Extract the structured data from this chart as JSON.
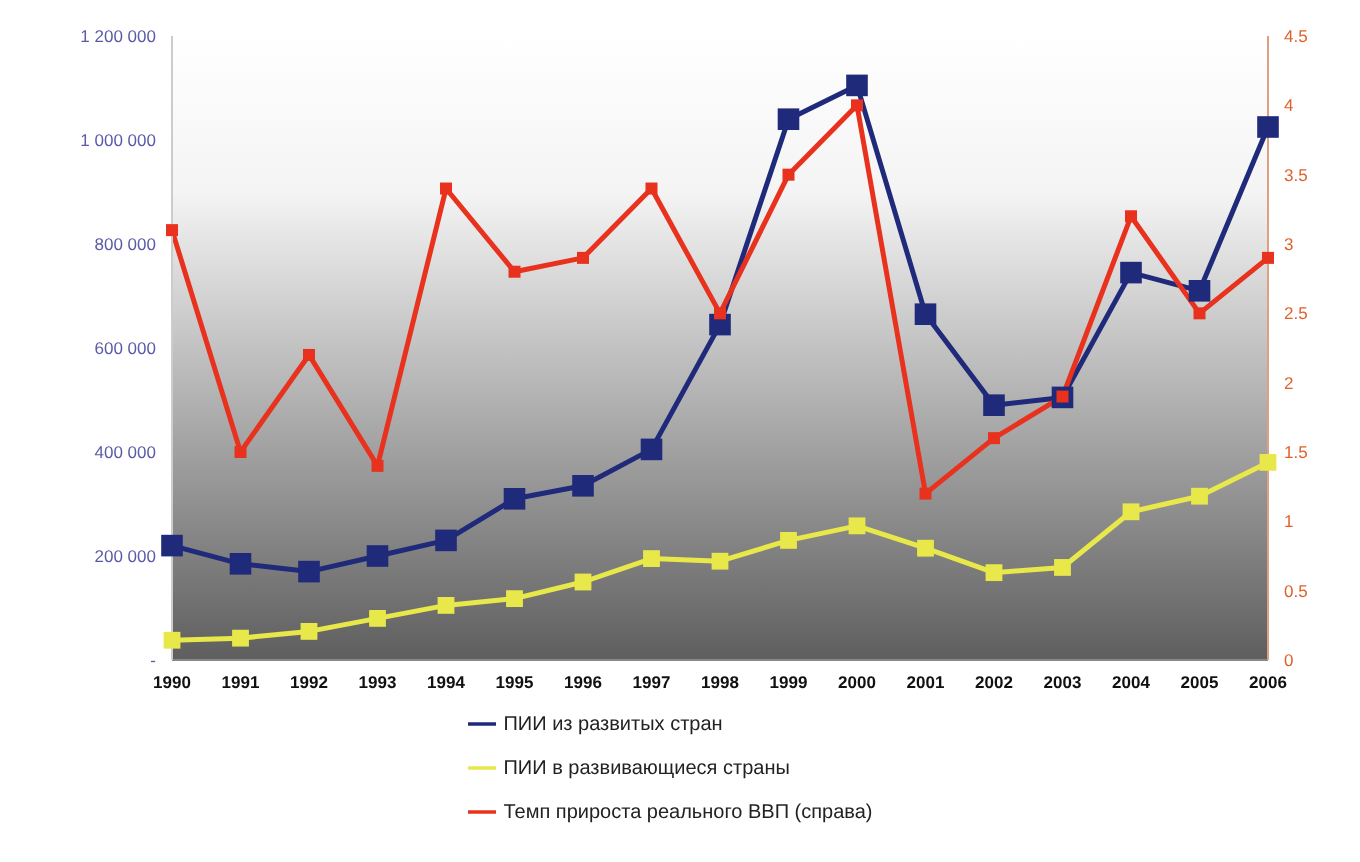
{
  "chart_data": {
    "type": "line",
    "categories": [
      "1990",
      "1991",
      "1992",
      "1993",
      "1994",
      "1995",
      "1996",
      "1997",
      "1998",
      "1999",
      "2000",
      "2001",
      "2002",
      "2003",
      "2004",
      "2005",
      "2006"
    ],
    "series": [
      {
        "name": "ПИИ из развитых стран",
        "color": "#1f2a7a",
        "values": [
          220000,
          185000,
          170000,
          200000,
          230000,
          310000,
          335000,
          405000,
          645000,
          1040000,
          1105000,
          665000,
          490000,
          505000,
          745000,
          710000,
          1025000
        ]
      },
      {
        "name": "ПИИ в развивающиеся страны",
        "color": "#e8e84a",
        "values": [
          38000,
          42000,
          55000,
          80000,
          105000,
          118000,
          150000,
          195000,
          190000,
          230000,
          258000,
          215000,
          168000,
          178000,
          285000,
          315000,
          380000
        ]
      },
      {
        "name": "Темп прироста реального ВВП (справа)",
        "color": "#e8321e",
        "axis": "y2",
        "values": [
          3.1,
          1.5,
          2.2,
          1.4,
          3.4,
          2.8,
          2.9,
          3.4,
          2.5,
          3.5,
          4.0,
          1.2,
          1.6,
          1.9,
          3.2,
          2.5,
          2.9
        ]
      }
    ],
    "ylim": [
      0,
      1200000
    ],
    "yticks": [
      {
        "value": 0,
        "label": "-"
      },
      {
        "value": 200000,
        "label": "200 000"
      },
      {
        "value": 400000,
        "label": "400 000"
      },
      {
        "value": 600000,
        "label": "600 000"
      },
      {
        "value": 800000,
        "label": "800 000"
      },
      {
        "value": 1000000,
        "label": "1 000 000"
      },
      {
        "value": 1200000,
        "label": "1 200 000"
      }
    ],
    "y2lim": [
      0,
      4.5
    ],
    "y2ticks": [
      0,
      0.5,
      1,
      1.5,
      2,
      2.5,
      3,
      3.5,
      4,
      4.5
    ],
    "legend": "bottom",
    "marker": "square",
    "line_style": "solid"
  }
}
